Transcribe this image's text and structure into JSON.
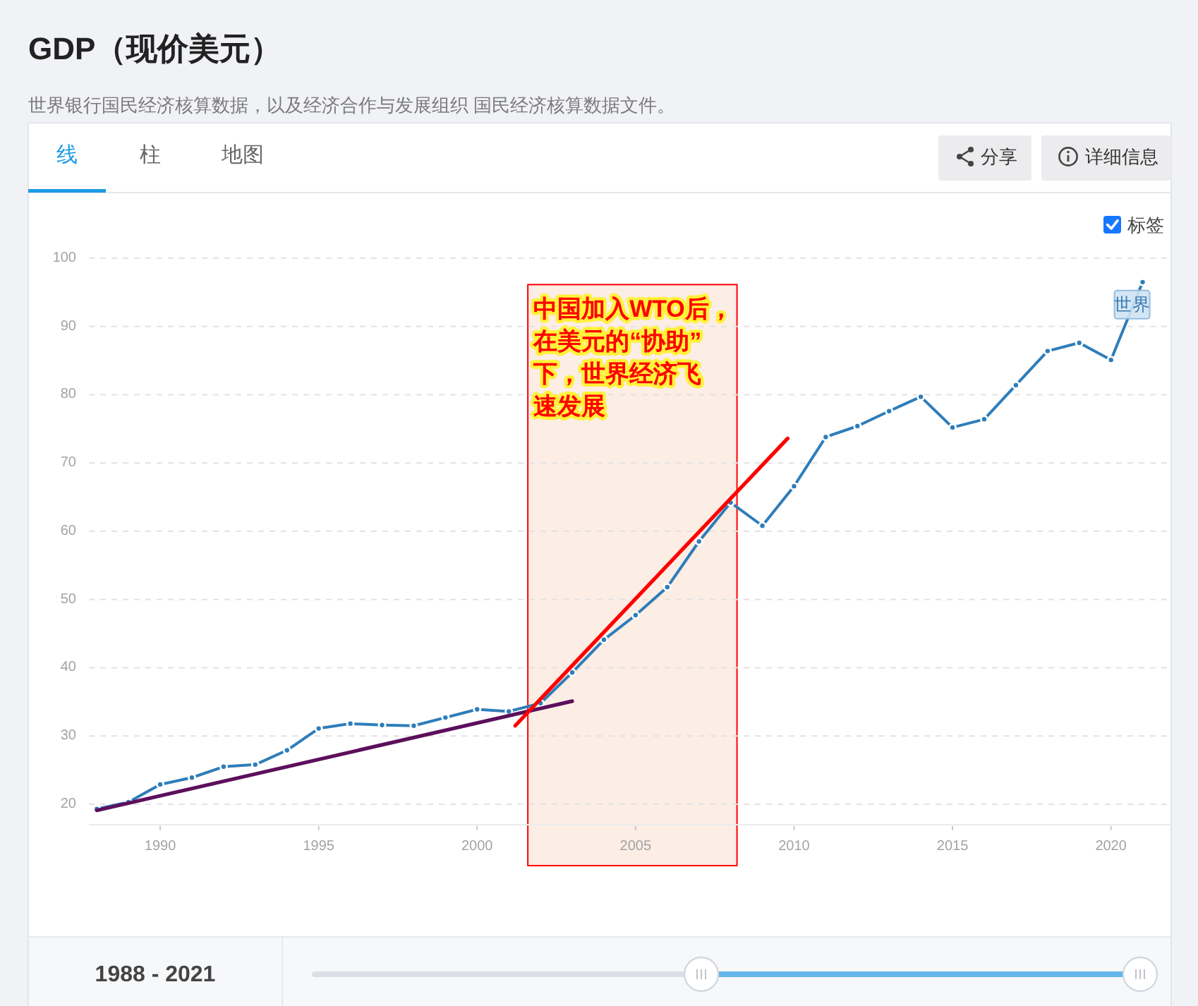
{
  "chart_data": {
    "type": "line",
    "title": "GDP（现价美元）",
    "subtitle": "世界银行国民经济核算数据，以及经济合作与发展组织 国民经济核算数据文件。",
    "x": [
      1988,
      1989,
      1990,
      1991,
      1992,
      1993,
      1994,
      1995,
      1996,
      1997,
      1998,
      1999,
      2000,
      2001,
      2002,
      2003,
      2004,
      2005,
      2006,
      2007,
      2008,
      2009,
      2010,
      2011,
      2012,
      2013,
      2014,
      2015,
      2016,
      2017,
      2018,
      2019,
      2020,
      2021
    ],
    "series": [
      {
        "name": "世界",
        "color": "#2e7dba",
        "values": [
          19.3,
          20.3,
          22.9,
          23.9,
          25.5,
          25.8,
          27.9,
          31.1,
          31.8,
          31.6,
          31.5,
          32.7,
          33.9,
          33.6,
          34.8,
          39.3,
          44.1,
          47.7,
          51.8,
          58.5,
          64.2,
          60.8,
          66.6,
          73.8,
          75.4,
          77.6,
          79.7,
          75.2,
          76.4,
          81.4,
          86.4,
          87.6,
          85.1,
          96.5
        ]
      },
      {
        "type": "line",
        "color": "#5c0f5c",
        "marker": "none",
        "x": [
          1988,
          2003
        ],
        "values": [
          19.1,
          35.1
        ]
      },
      {
        "type": "line",
        "color": "#ff0000",
        "marker": "none",
        "x": [
          2001.2,
          2009.8
        ],
        "values": [
          31.5,
          73.6
        ]
      }
    ],
    "xlim": [
      1987.75,
      2021.9
    ],
    "ylim": [
      17,
      100
    ],
    "xticks": [
      1990,
      1995,
      2000,
      2005,
      2010,
      2015,
      2020
    ],
    "yticks": [
      20,
      30,
      40,
      50,
      60,
      70,
      80,
      90,
      100
    ],
    "grid": "y",
    "marker": "circle",
    "line_style": "solid",
    "bands": [
      {
        "axis": "x",
        "from": 2001.6,
        "to": 2008.2,
        "label": "中国加入WTO后，在美元的“协助”下，世界经济飞速发展",
        "color": "#fcede5"
      }
    ],
    "annotations": [
      "线",
      "柱",
      "地图",
      "分享",
      "详细信息",
      "标签",
      "1988 - 2021"
    ]
  }
}
